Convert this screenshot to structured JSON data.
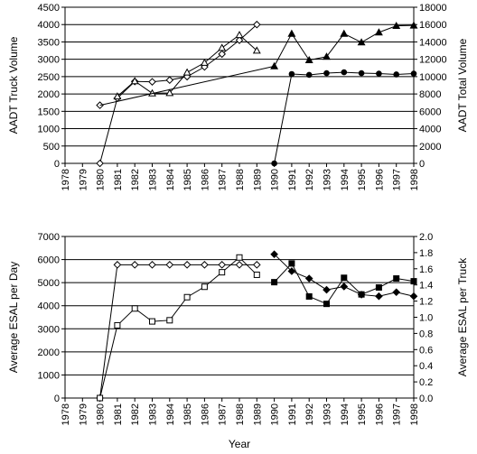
{
  "colors": {
    "axis": "#000000",
    "background": "#ffffff",
    "line": "#000000",
    "marker_fill_open": "#ffffff",
    "marker_fill_solid": "#000000"
  },
  "chart_data": [
    {
      "type": "line",
      "title": "",
      "xlabel": "",
      "ylabel": "AADT Truck Volume",
      "y2label": "AADT Total Volume",
      "categories": [
        "1978",
        "1979",
        "1980",
        "1981",
        "1982",
        "1983",
        "1984",
        "1985",
        "1986",
        "1987",
        "1988",
        "1989",
        "1990",
        "1991",
        "1992",
        "1993",
        "1994",
        "1995",
        "1996",
        "1997",
        "1998"
      ],
      "ylim": [
        0,
        4500
      ],
      "y2lim": [
        0,
        18000
      ],
      "y_ticks": [
        "0",
        "500",
        "1000",
        "1500",
        "2000",
        "2500",
        "3000",
        "3500",
        "4000",
        "4500"
      ],
      "y2_ticks": [
        "0",
        "2000",
        "4000",
        "6000",
        "8000",
        "10000",
        "12000",
        "14000",
        "16000",
        "18000"
      ],
      "grid": "horizontal",
      "legend": "none",
      "series": [
        {
          "axis": "left",
          "marker": "open-diamond",
          "x": [
            "1980",
            "1981",
            "1982",
            "1983",
            "1984",
            "1985",
            "1986",
            "1987",
            "1988",
            "1989"
          ],
          "values": [
            0,
            1880,
            2360,
            2350,
            2400,
            2500,
            2780,
            3150,
            3550,
            4000
          ]
        },
        {
          "axis": "left",
          "marker": "open-triangle",
          "x": [
            "1981",
            "1982",
            "1983",
            "1984",
            "1985",
            "1986",
            "1987",
            "1988",
            "1989"
          ],
          "values": [
            1930,
            2370,
            2020,
            2030,
            2620,
            2900,
            3330,
            3700,
            3250
          ]
        },
        {
          "axis": "right",
          "marker": "diamond-with-line",
          "start_marker": "open-diamond",
          "start_value": 6700,
          "start_x": "1980",
          "x": [
            "1990",
            "1991",
            "1992",
            "1993",
            "1994",
            "1995",
            "1996",
            "1997",
            "1998"
          ],
          "values": [
            11200,
            14950,
            11900,
            12300,
            14950,
            13950,
            15100,
            15850,
            15900
          ]
        },
        {
          "axis": "right",
          "marker": "filled-circle",
          "x": [
            "1990",
            "1991",
            "1992",
            "1993",
            "1994",
            "1995",
            "1996",
            "1997",
            "1998"
          ],
          "values": [
            0,
            10300,
            10200,
            10400,
            10500,
            10400,
            10350,
            10250,
            10350
          ]
        }
      ]
    },
    {
      "type": "line",
      "title": "",
      "xlabel": "Year",
      "ylabel": "Average ESAL per Day",
      "y2label": "Average ESAL per Truck",
      "categories": [
        "1978",
        "1979",
        "1980",
        "1981",
        "1982",
        "1983",
        "1984",
        "1985",
        "1986",
        "1987",
        "1988",
        "1989",
        "1990",
        "1991",
        "1992",
        "1993",
        "1994",
        "1995",
        "1996",
        "1997",
        "1998"
      ],
      "ylim": [
        0,
        7000
      ],
      "y2lim": [
        0,
        2.0
      ],
      "y_ticks": [
        "0",
        "1000",
        "2000",
        "3000",
        "4000",
        "5000",
        "6000",
        "7000"
      ],
      "y2_ticks": [
        "0.0",
        "0.2",
        "0.4",
        "0.6",
        "0.8",
        "1.0",
        "1.2",
        "1.4",
        "1.6",
        "1.8",
        "2.0"
      ],
      "grid": "horizontal",
      "legend": "none",
      "series": [
        {
          "axis": "right",
          "marker": "open-diamond",
          "x": [
            "1980",
            "1981",
            "1982",
            "1983",
            "1984",
            "1985",
            "1986",
            "1987",
            "1988",
            "1989"
          ],
          "values": [
            0,
            1.65,
            1.65,
            1.65,
            1.65,
            1.65,
            1.65,
            1.65,
            1.65,
            1.65
          ]
        },
        {
          "axis": "left",
          "marker": "open-square",
          "x": [
            "1980",
            "1981",
            "1982",
            "1983",
            "1984",
            "1985",
            "1986",
            "1987",
            "1988",
            "1989"
          ],
          "values": [
            0,
            3150,
            3880,
            3320,
            3370,
            4370,
            4820,
            5450,
            6090,
            5340
          ]
        },
        {
          "axis": "left",
          "marker": "filled-square",
          "x": [
            "1990",
            "1991",
            "1992",
            "1993",
            "1994",
            "1995",
            "1996",
            "1997",
            "1998"
          ],
          "values": [
            5020,
            5830,
            4400,
            4080,
            5210,
            4490,
            4790,
            5180,
            5060
          ]
        },
        {
          "axis": "right",
          "marker": "filled-diamond",
          "x": [
            "1990",
            "1991",
            "1992",
            "1993",
            "1994",
            "1995",
            "1996",
            "1997",
            "1998"
          ],
          "values": [
            1.78,
            1.57,
            1.48,
            1.34,
            1.38,
            1.28,
            1.26,
            1.31,
            1.26
          ]
        }
      ]
    }
  ]
}
